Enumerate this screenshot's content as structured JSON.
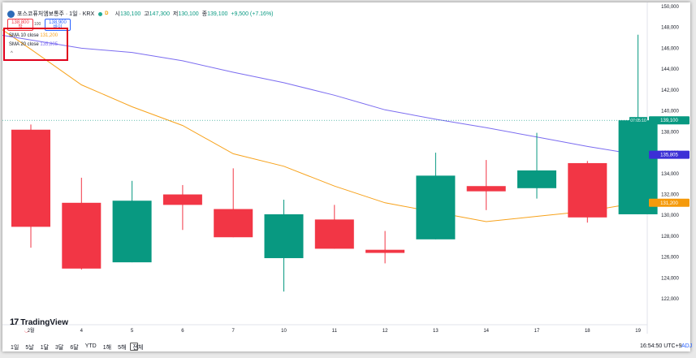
{
  "header": {
    "symbol_title": "포스코퓨처엠보통주 · 1일 · KRX",
    "interval_badge": "D",
    "o_label": "시",
    "o_value": "130,100",
    "h_label": "고",
    "h_value": "147,300",
    "l_label": "저",
    "l_value": "130,100",
    "c_label": "종",
    "c_value": "139,100",
    "change": "+9,500 (+7.16%)"
  },
  "trade": {
    "sell_price": "138,800",
    "sell_label": "팔",
    "spread": "100",
    "buy_price": "138,900",
    "buy_label": "바이"
  },
  "legend": {
    "sma10_label": "SMA 10 close",
    "sma10_value": "131,200",
    "sma20_label": "SMA 20 close",
    "sma20_value": "135,805",
    "collapse_glyph": "^"
  },
  "brand": {
    "name": "TradingView",
    "mark": "17"
  },
  "toolbar": {
    "ranges": [
      "1일",
      "5날",
      "1달",
      "3달",
      "6달",
      "YTD",
      "1해",
      "5해",
      "전체"
    ],
    "time": "16:54:50 UTC+9",
    "adj": "ADJ"
  },
  "colors": {
    "up": "#089981",
    "down": "#f23645",
    "sma10": "#f7a21b",
    "sma20": "#7b6cf0",
    "last_price_tag": "#089981",
    "sma20_tag": "#3c2fd6",
    "sma10_tag": "#f59a0b"
  },
  "chart_data": {
    "type": "candlestick",
    "title": "포스코퓨처엠보통주 · 1일 · KRX",
    "x": [
      "2월",
      "4",
      "5",
      "6",
      "7",
      "10",
      "11",
      "12",
      "13",
      "14",
      "17",
      "18",
      "19"
    ],
    "series": [
      {
        "name": "포스코퓨처엠보통주",
        "ohlc": [
          {
            "o": 138200,
            "h": 138700,
            "l": 126900,
            "c": 128900
          },
          {
            "o": 131200,
            "h": 133600,
            "l": 124800,
            "c": 124900
          },
          {
            "o": 125500,
            "h": 133300,
            "l": 125500,
            "c": 131400
          },
          {
            "o": 132000,
            "h": 132900,
            "l": 128600,
            "c": 131000
          },
          {
            "o": 130600,
            "h": 134500,
            "l": 127900,
            "c": 127900
          },
          {
            "o": 125900,
            "h": 131500,
            "l": 122700,
            "c": 130100
          },
          {
            "o": 129600,
            "h": 131000,
            "l": 126800,
            "c": 126800
          },
          {
            "o": 126700,
            "h": 128500,
            "l": 125400,
            "c": 126400
          },
          {
            "o": 127700,
            "h": 136000,
            "l": 127700,
            "c": 133800
          },
          {
            "o": 132800,
            "h": 135300,
            "l": 130500,
            "c": 132300
          },
          {
            "o": 132600,
            "h": 137900,
            "l": 131600,
            "c": 134300
          },
          {
            "o": 135000,
            "h": 135200,
            "l": 129300,
            "c": 129800
          },
          {
            "o": 130100,
            "h": 147300,
            "l": 130100,
            "c": 139100
          }
        ]
      },
      {
        "name": "SMA 10 close",
        "values": [
          145900,
          142500,
          140400,
          138600,
          135900,
          134700,
          132800,
          131200,
          130300,
          129400,
          129900,
          130400,
          131200
        ]
      },
      {
        "name": "SMA 20 close",
        "values": [
          146800,
          146000,
          145600,
          144800,
          143700,
          142700,
          141500,
          140100,
          139200,
          138400,
          137500,
          136600,
          135805
        ]
      }
    ],
    "y_ticks": [
      122000,
      124000,
      126000,
      128000,
      130000,
      132000,
      134000,
      136000,
      138000,
      140000,
      142000,
      144000,
      146000,
      148000,
      150000
    ],
    "ylim": [
      121000,
      150000
    ],
    "last_price": 139100,
    "last_price_countdown": "07:05:10",
    "grid": false
  }
}
